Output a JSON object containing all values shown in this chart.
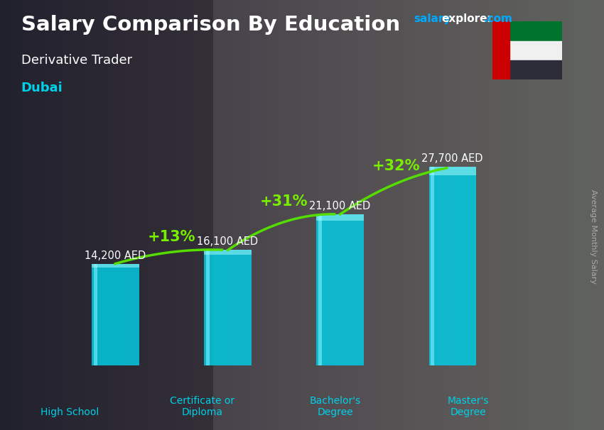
{
  "title": "Salary Comparison By Education",
  "subtitle": "Derivative Trader",
  "location": "Dubai",
  "ylabel": "Average Monthly Salary",
  "categories": [
    "High School",
    "Certificate or\nDiploma",
    "Bachelor's\nDegree",
    "Master's\nDegree"
  ],
  "values": [
    14200,
    16100,
    21100,
    27700
  ],
  "value_labels": [
    "14,200 AED",
    "16,100 AED",
    "21,100 AED",
    "27,700 AED"
  ],
  "pct_changes": [
    "+13%",
    "+31%",
    "+32%"
  ],
  "bar_color": "#00d0e8",
  "bar_alpha": 0.82,
  "bar_edge_color": "#00eeff",
  "bg_color_left": "#404040",
  "bg_color_right": "#808080",
  "title_color": "#ffffff",
  "subtitle_color": "#ffffff",
  "location_color": "#00d0e8",
  "value_label_color": "#ffffff",
  "pct_color": "#77ee00",
  "arrow_color": "#55dd00",
  "cat_label_color": "#00d0e8",
  "watermark_salary_color": "#00aaff",
  "watermark_explorer_color": "#ffffff",
  "watermark_com_color": "#00aaff",
  "bar_width": 0.42,
  "figsize": [
    8.5,
    6.06
  ],
  "dpi": 100,
  "ylim_max": 33000,
  "ylabel_color": "#aaaaaa"
}
